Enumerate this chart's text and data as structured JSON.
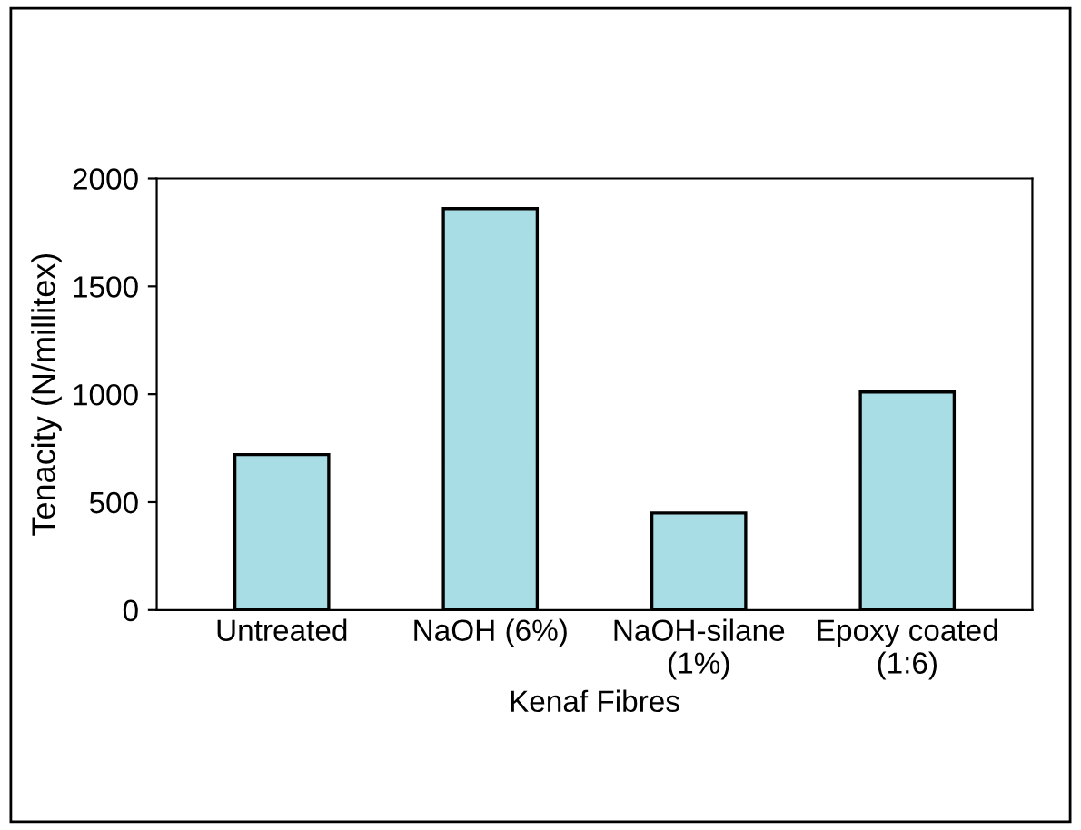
{
  "chart_data": {
    "type": "bar",
    "xlabel": "Kenaf Fibres",
    "ylabel": "Tenacity (N/millitex)",
    "categories": [
      "Untreated",
      "NaOH (6%)",
      "NaOH-silane\n(1%)",
      "Epoxy coated\n(1:6)"
    ],
    "values": [
      720,
      1860,
      450,
      1010
    ],
    "color": "#a9dde6",
    "ylim": [
      0,
      2000
    ],
    "yticks": [
      0,
      500,
      1000,
      1500,
      2000
    ],
    "grid": false,
    "legend": false
  }
}
